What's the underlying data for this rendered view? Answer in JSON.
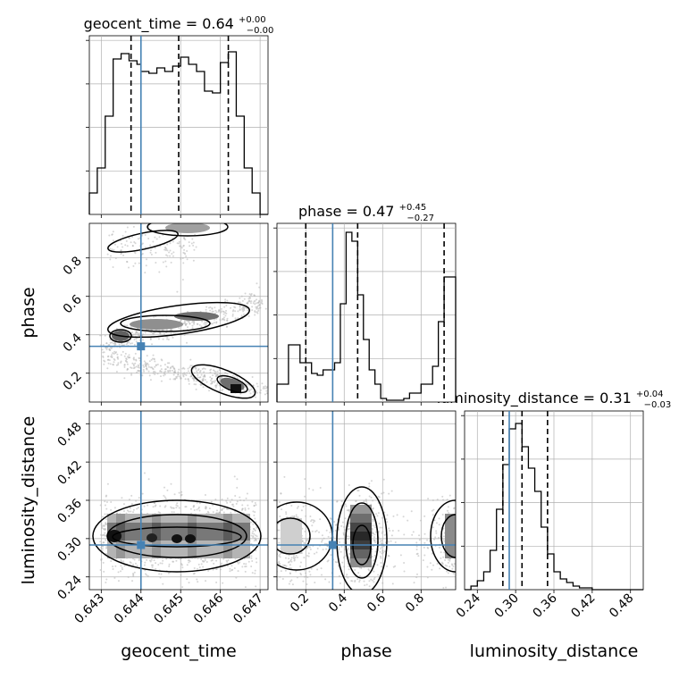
{
  "chart_data": {
    "type": "corner",
    "parameters": [
      "geocent_time",
      "phase",
      "luminosity_distance"
    ],
    "titles": [
      {
        "base": "geocent_time = 0.64",
        "sup": "+0.00",
        "sub": "−0.00"
      },
      {
        "base": "phase = 0.47",
        "sup": "+0.45",
        "sub": "−0.27"
      },
      {
        "base": "luminosity_distance = 0.31",
        "sup": "+0.04",
        "sub": "−0.03"
      }
    ],
    "xlabels": [
      "geocent_time",
      "phase",
      "luminosity_distance"
    ],
    "ylabels": [
      "",
      "phase",
      "luminosity_distance"
    ],
    "ranges": [
      [
        0.6427,
        0.6472
      ],
      [
        0.05,
        0.98
      ],
      [
        0.22,
        0.5
      ]
    ],
    "ticks": [
      {
        "values": [
          0.643,
          0.644,
          0.645,
          0.646,
          0.647
        ],
        "labels": [
          "0.643",
          "0.644",
          "0.645",
          "0.646",
          "0.647"
        ]
      },
      {
        "values": [
          0.2,
          0.4,
          0.6,
          0.8
        ],
        "labels": [
          "0.2",
          "0.4",
          "0.6",
          "0.8"
        ]
      },
      {
        "values": [
          0.24,
          0.3,
          0.36,
          0.42,
          0.48
        ],
        "labels": [
          "0.24",
          "0.30",
          "0.36",
          "0.42",
          "0.48"
        ]
      }
    ],
    "truths": [
      0.644,
      0.34,
      0.29
    ],
    "truth_color": "#4682b4",
    "quantiles": [
      [
        0.64375,
        0.64495,
        0.6462
      ],
      [
        0.2,
        0.47,
        0.92
      ],
      [
        0.28,
        0.31,
        0.35
      ]
    ],
    "histograms": [
      {
        "bins": [
          0.6427,
          0.6428,
          0.6429,
          0.643,
          0.6431,
          0.6432,
          0.6433,
          0.6434,
          0.6435,
          0.6436,
          0.6437,
          0.6438,
          0.6439,
          0.644,
          0.6441,
          0.6442,
          0.6443,
          0.6444,
          0.6445,
          0.6446,
          0.6447,
          0.6448,
          0.6449,
          0.645,
          0.6451,
          0.6452,
          0.6453,
          0.6454,
          0.6455,
          0.6456,
          0.6457,
          0.6458,
          0.6459,
          0.646,
          0.6461,
          0.6462,
          0.6463,
          0.6464,
          0.6465,
          0.6466,
          0.6467,
          0.6468,
          0.6469,
          0.647,
          0.6471,
          0.6472
        ],
        "counts": [
          0.12,
          0.12,
          0.26,
          0.26,
          0.55,
          0.55,
          0.87,
          0.87,
          0.9,
          0.9,
          0.86,
          0.86,
          0.84,
          0.8,
          0.8,
          0.79,
          0.79,
          0.82,
          0.82,
          0.8,
          0.8,
          0.83,
          0.83,
          0.88,
          0.88,
          0.84,
          0.84,
          0.8,
          0.8,
          0.69,
          0.69,
          0.68,
          0.68,
          0.85,
          0.85,
          0.91,
          0.91,
          0.55,
          0.55,
          0.26,
          0.26,
          0.12,
          0.12,
          0.0,
          0.0
        ]
      },
      {
        "bins": [
          0.05,
          0.08,
          0.11,
          0.14,
          0.17,
          0.2,
          0.23,
          0.26,
          0.29,
          0.32,
          0.35,
          0.38,
          0.41,
          0.44,
          0.47,
          0.5,
          0.53,
          0.56,
          0.59,
          0.62,
          0.65,
          0.68,
          0.71,
          0.74,
          0.77,
          0.8,
          0.83,
          0.86,
          0.89,
          0.92,
          0.95,
          0.98
        ],
        "counts": [
          0.1,
          0.1,
          0.32,
          0.32,
          0.22,
          0.22,
          0.16,
          0.15,
          0.18,
          0.18,
          0.22,
          0.55,
          0.95,
          0.9,
          0.6,
          0.35,
          0.18,
          0.1,
          0.02,
          0.01,
          0.01,
          0.01,
          0.02,
          0.05,
          0.05,
          0.1,
          0.1,
          0.2,
          0.45,
          0.7,
          0.7
        ]
      },
      {
        "bins": [
          0.22,
          0.23,
          0.24,
          0.25,
          0.26,
          0.27,
          0.28,
          0.29,
          0.3,
          0.31,
          0.32,
          0.33,
          0.34,
          0.35,
          0.36,
          0.37,
          0.38,
          0.39,
          0.4,
          0.41,
          0.42,
          0.43,
          0.44,
          0.45,
          0.46,
          0.47,
          0.48,
          0.49,
          0.5
        ],
        "counts": [
          0.0,
          0.02,
          0.05,
          0.1,
          0.22,
          0.45,
          0.7,
          0.9,
          0.93,
          0.8,
          0.68,
          0.55,
          0.35,
          0.2,
          0.1,
          0.06,
          0.04,
          0.02,
          0.01,
          0.01,
          0.0,
          0.0,
          0.0,
          0.0,
          0.0,
          0.0,
          0.0,
          0.0
        ]
      }
    ],
    "colors": {
      "hist": "#000000",
      "scatter": "#b4b4b4",
      "contour": "#000000",
      "grid": "#b0b0b0"
    }
  }
}
